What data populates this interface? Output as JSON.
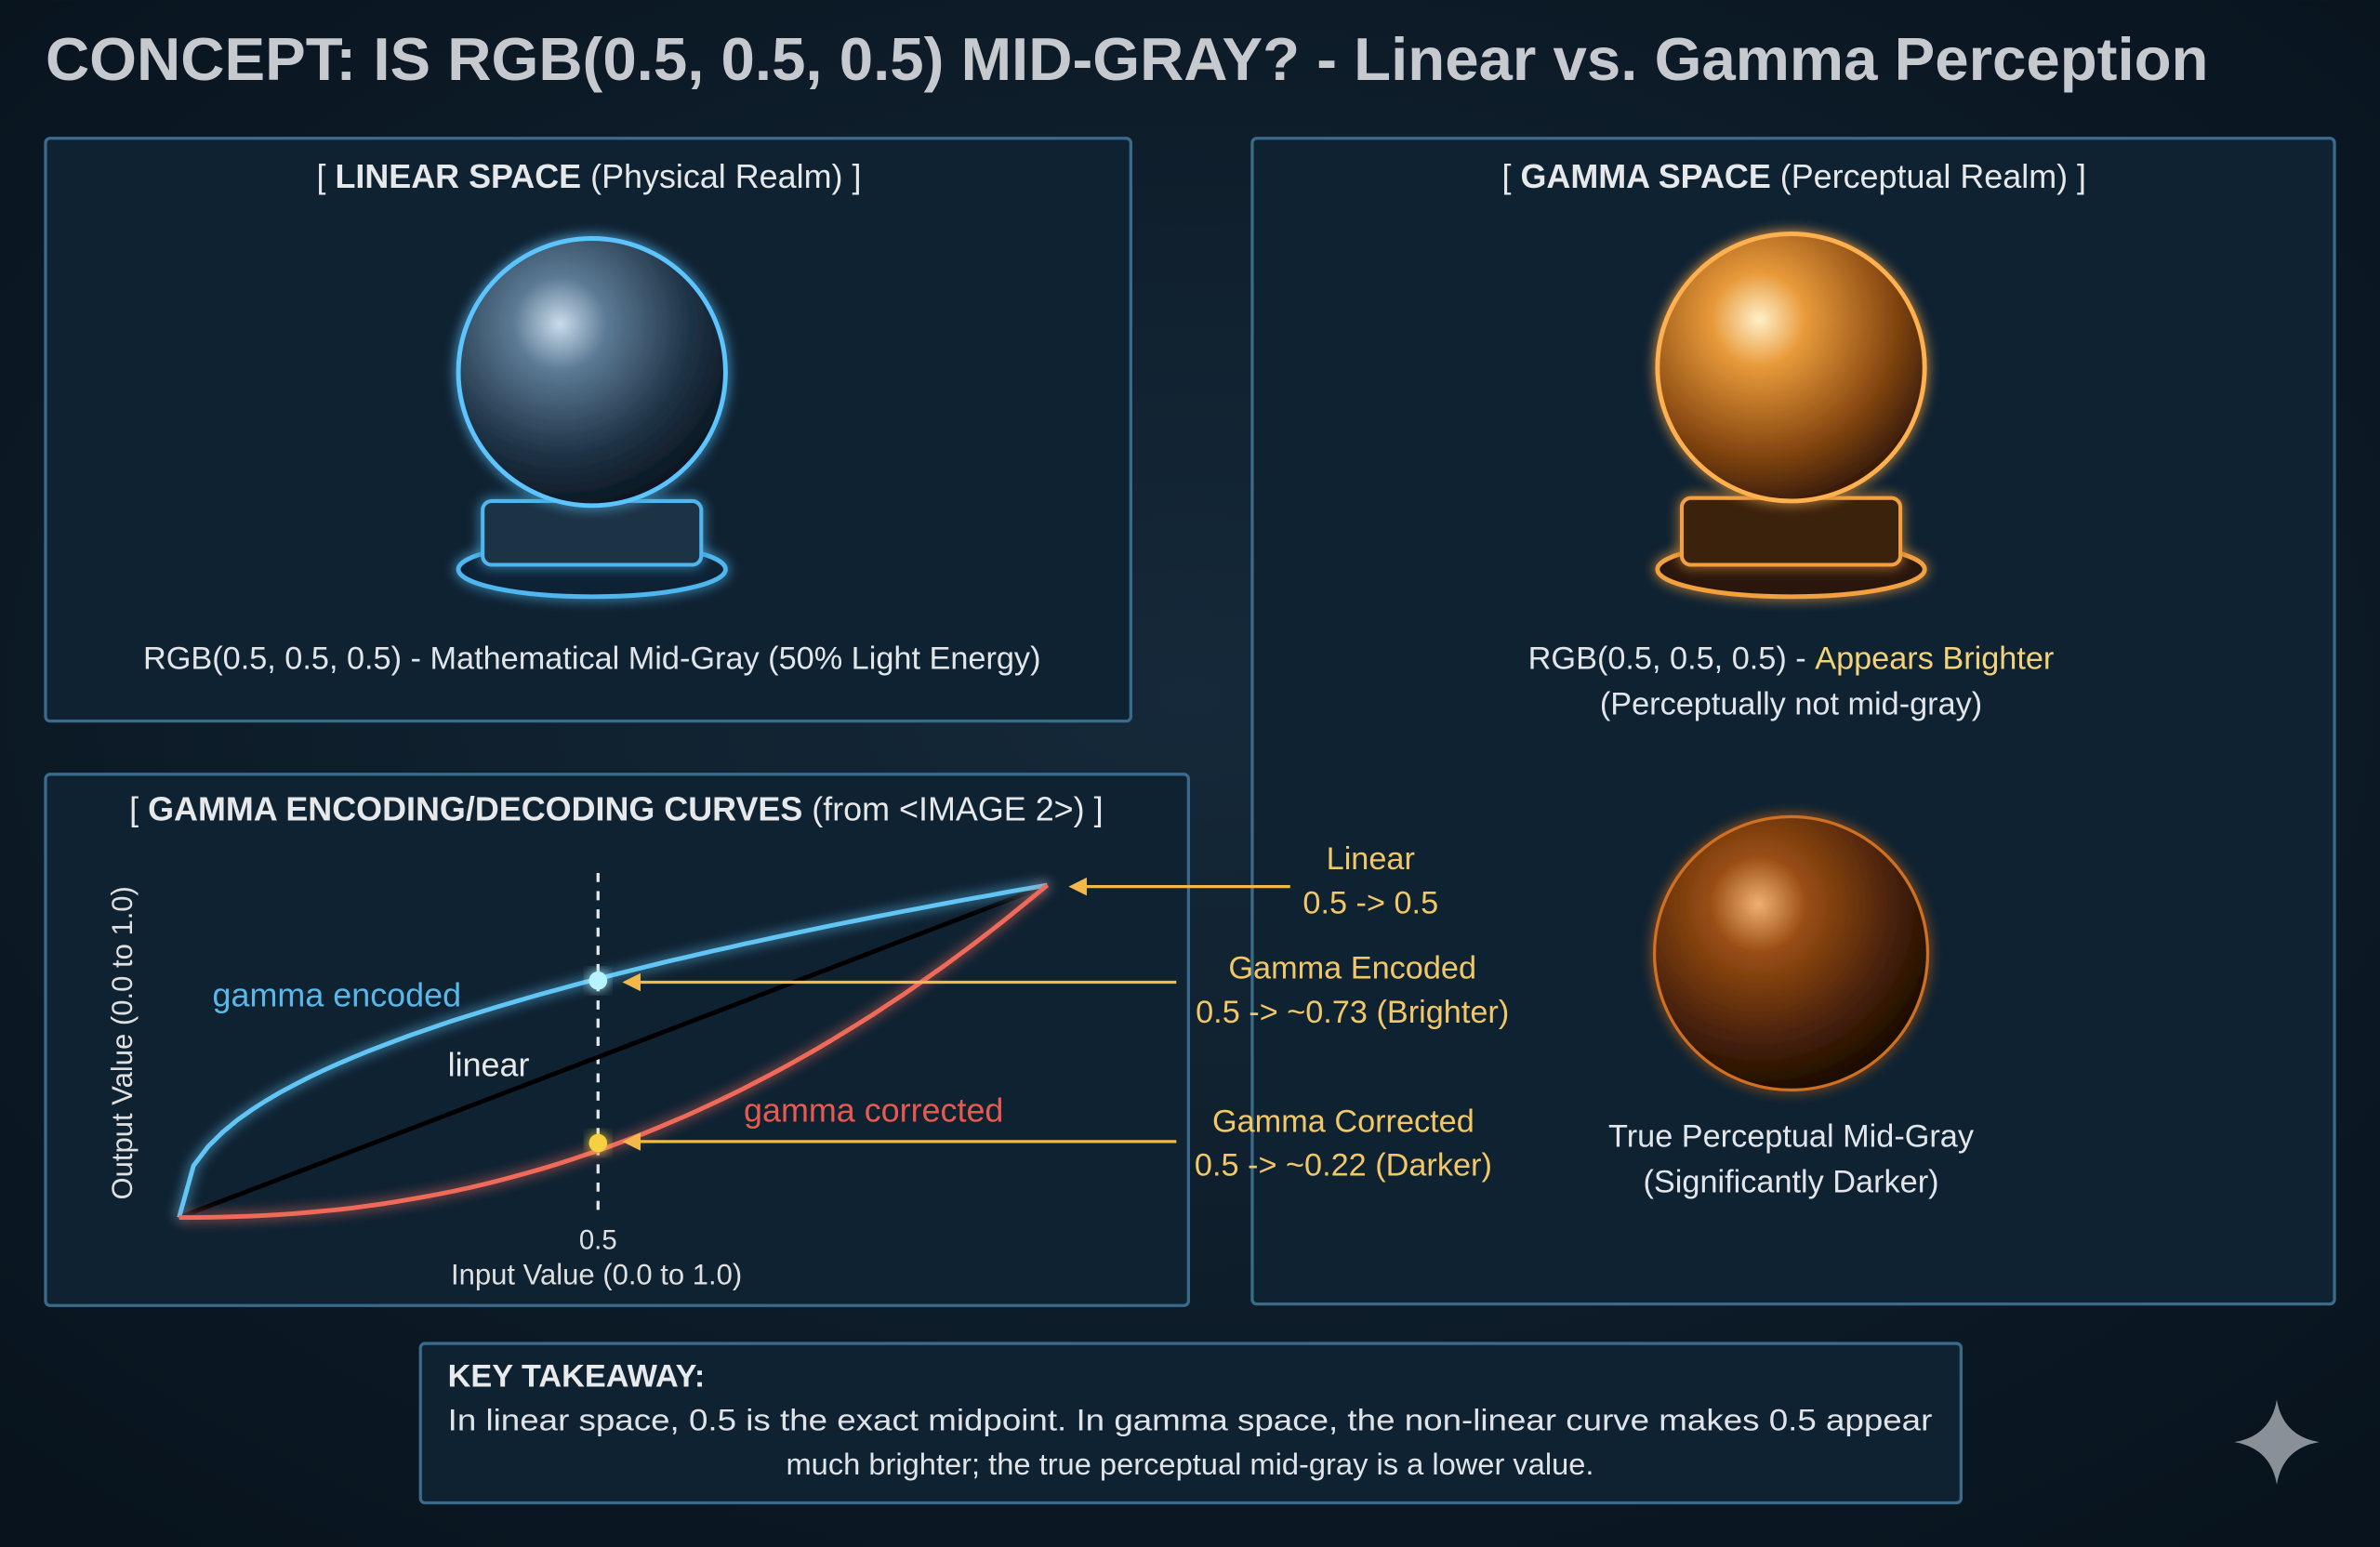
{
  "header": {
    "title": "CONCEPT: IS RGB(0.5, 0.5, 0.5) MID-GRAY? - Linear vs. Gamma Perception"
  },
  "linear_panel": {
    "title": {
      "open": "[",
      "bold": "LINEAR SPACE",
      "rest": "(Physical Realm)",
      "close": "]"
    },
    "caption": "RGB(0.5, 0.5, 0.5) - Mathematical Mid-Gray (50% Light Energy)"
  },
  "gamma_panel": {
    "title": {
      "open": "[",
      "bold": "GAMMA SPACE",
      "rest": "(Perceptual Realm)",
      "close": "]"
    },
    "top_caption": {
      "prefix": "RGB(0.5, 0.5, 0.5) -",
      "highlight": "Appears Brighter",
      "line2": "(Perceptually not mid-gray)"
    },
    "bottom_caption": [
      "True Perceptual Mid-Gray",
      "(Significantly Darker)"
    ]
  },
  "curves_panel": {
    "title": {
      "open": "[",
      "bold": "GAMMA ENCODING/DECODING CURVES",
      "rest": "(from <IMAGE 2>)",
      "close": "]"
    },
    "y_axis_label": "Output Value (0.0 to 1.0)",
    "x_axis_label": "Input Value (0.0 to 1.0)",
    "x_marker": "0.5",
    "curve_labels": {
      "encoded": "gamma encoded",
      "linear": "linear",
      "corrected": "gamma corrected"
    }
  },
  "annotations": [
    {
      "lines": [
        "Linear",
        "0.5 -> 0.5"
      ]
    },
    {
      "lines": [
        "Gamma Encoded",
        "0.5 -> ~0.73 (Brighter)"
      ]
    },
    {
      "lines": [
        "Gamma Corrected",
        "0.5 -> ~0.22 (Darker)"
      ]
    }
  ],
  "takeaway": {
    "heading": "KEY TAKEAWAY:",
    "lines": [
      "In linear space, 0.5 is the exact midpoint. In gamma space, the non-linear curve makes 0.5 appear",
      "much brighter; the true perceptual mid-gray is a lower value."
    ]
  }
}
